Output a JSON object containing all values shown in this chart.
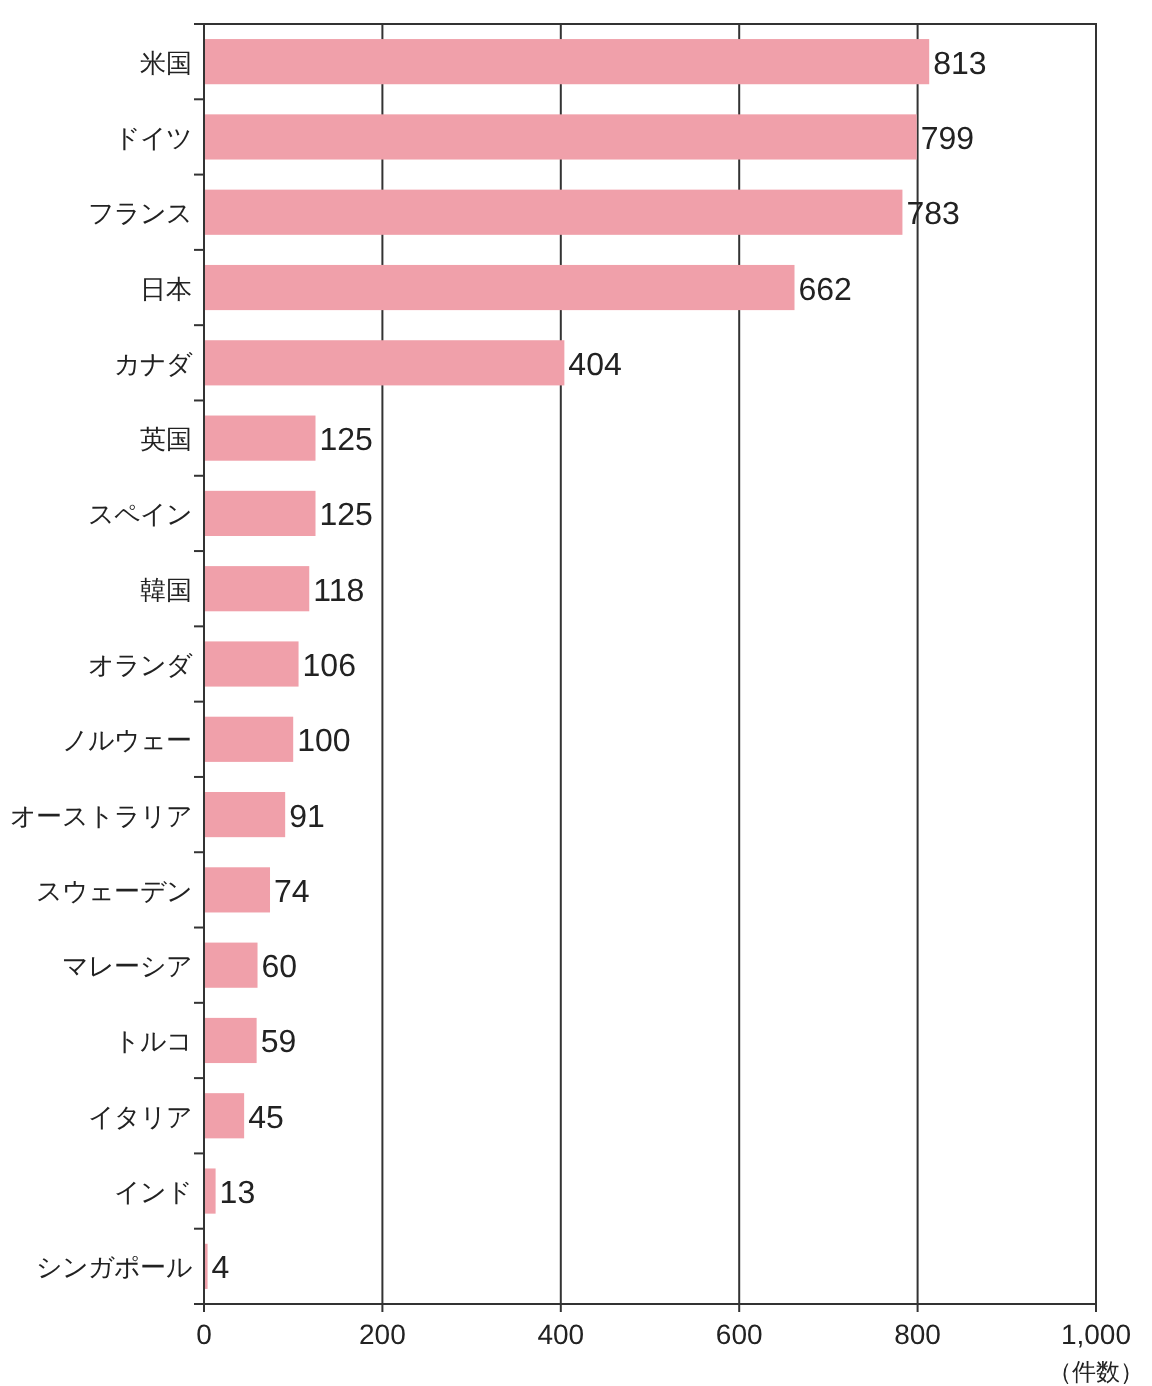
{
  "chart_data": {
    "type": "bar",
    "orientation": "horizontal",
    "xlabel": "（件数）",
    "categories": [
      "米国",
      "ドイツ",
      "フランス",
      "日本",
      "カナダ",
      "英国",
      "スペイン",
      "韓国",
      "オランダ",
      "ノルウェー",
      "オーストラリア",
      "スウェーデン",
      "マレーシア",
      "トルコ",
      "イタリア",
      "インド",
      "シンガポール"
    ],
    "values": [
      813,
      799,
      783,
      662,
      404,
      125,
      125,
      118,
      106,
      100,
      91,
      74,
      60,
      59,
      45,
      13,
      4
    ],
    "color": "#f0a0aa",
    "data_labels": true,
    "xlim": [
      0,
      1000
    ],
    "xticks": [
      0,
      200,
      400,
      600,
      800,
      {
        "value": 1000,
        "label": "1,000"
      }
    ],
    "grid": "x"
  }
}
